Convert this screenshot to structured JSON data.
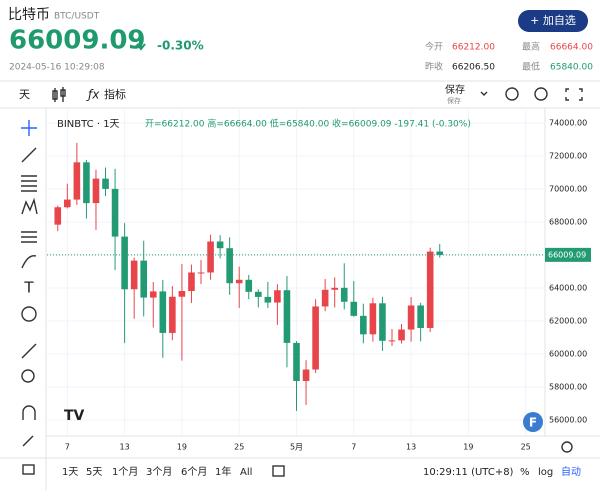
{
  "header": {
    "title": "比特币",
    "symbol": "BTC/USDT",
    "price": "66009.09",
    "change": "-0.30%",
    "time": "2024-05-16 10:29:08",
    "button": "+ 加自选",
    "stats": [
      {
        "label": "今开",
        "value": "66212.00"
      },
      {
        "label": "最高",
        "value": "66664.00"
      },
      {
        "label": "昨收",
        "value": "66206.50"
      },
      {
        "label": "最低",
        "value": "65840.00"
      }
    ]
  },
  "toolbar": {
    "interval": "天",
    "indicators": "指标",
    "save": "保存",
    "save_sub": "保存"
  },
  "chart_data": {
    "type": "candlestick",
    "legend_symbol": "BINBTC · 1天",
    "legend_ohlc": "开=66212.00 高=66664.00 低=65840.00 收=66009.09 -197.41 (-0.30%)",
    "categories": [
      null,
      "7",
      null,
      null,
      null,
      null,
      null,
      "13",
      null,
      null,
      null,
      null,
      null,
      "19",
      null,
      null,
      null,
      null,
      null,
      "25",
      null,
      null,
      null,
      null,
      null,
      "5月",
      null,
      null,
      null,
      null,
      null,
      "7",
      null,
      null,
      null,
      null,
      null,
      "13",
      null,
      null,
      null,
      null,
      null,
      "19",
      null,
      null,
      null,
      null,
      null,
      "25",
      null
    ],
    "open": [
      67840,
      68896,
      69360,
      71620,
      69146,
      70631,
      70006,
      67116,
      63924,
      65661,
      63419,
      63793,
      61277,
      63470,
      63818,
      64941,
      64941,
      66819,
      66414,
      64289,
      64498,
      63770,
      63461,
      63118,
      63866,
      60672,
      58364,
      59060,
      62882,
      63892,
      64012,
      63165,
      62312,
      61193,
      63074,
      60799,
      60825,
      61483,
      62940,
      61577,
      66212,
      null,
      null,
      null,
      null,
      null,
      null,
      null,
      null,
      null,
      null
    ],
    "high": [
      69000,
      70326,
      72797,
      71758,
      71172,
      71305,
      71227,
      67932,
      65840,
      66867,
      64365,
      64486,
      64125,
      65450,
      65419,
      65695,
      67233,
      67199,
      67075,
      65297,
      64789,
      63923,
      64370,
      64228,
      64734,
      60780,
      59625,
      63320,
      64544,
      64646,
      65500,
      64422,
      63052,
      63410,
      63469,
      61515,
      61818,
      63450,
      63102,
      66444,
      66664,
      null,
      null,
      null,
      null,
      null,
      null,
      null,
      null,
      null,
      null
    ],
    "low": [
      67450,
      68824,
      69040,
      68210,
      67518,
      69567,
      65086,
      60660,
      62134,
      62274,
      61600,
      59768,
      60833,
      59600,
      63090,
      64237,
      64500,
      65800,
      63589,
      62794,
      63323,
      62824,
      62781,
      61765,
      59191,
      56552,
      56911,
      58848,
      62592,
      62822,
      62700,
      62261,
      60648,
      60750,
      60187,
      60487,
      60632,
      60749,
      60760,
      61330,
      65840,
      null,
      null,
      null,
      null,
      null,
      null,
      null,
      null,
      null,
      null
    ],
    "close": [
      68896,
      69360,
      71620,
      69146,
      70631,
      70006,
      67116,
      63924,
      65661,
      63419,
      63793,
      61277,
      63470,
      63818,
      64941,
      64941,
      66819,
      66414,
      64289,
      64498,
      63770,
      63461,
      63118,
      63866,
      60672,
      58364,
      59060,
      62882,
      63892,
      64012,
      63165,
      62312,
      61193,
      63074,
      60799,
      60825,
      61483,
      62940,
      61577,
      66206,
      66009.09,
      null,
      null,
      null,
      null,
      null,
      null,
      null,
      null,
      null,
      null
    ],
    "up_color": "#e8454a",
    "down_color": "#229b74",
    "ylim": [
      55090,
      74790
    ],
    "yticks": [
      {
        "value": 56000,
        "label": "56000.00"
      },
      {
        "value": 58000,
        "label": "58000.00"
      },
      {
        "value": 60000,
        "label": "60000.00"
      },
      {
        "value": 62000,
        "label": "62000.00"
      },
      {
        "value": 64000,
        "label": "64000.00"
      },
      {
        "value": 66000,
        "label": "66000.00"
      },
      {
        "value": 68000,
        "label": "68000.00"
      },
      {
        "value": 70000,
        "label": "70000.00"
      },
      {
        "value": 72000,
        "label": "72000.00"
      },
      {
        "value": 74000,
        "label": "74000.00"
      }
    ],
    "last_price": 66009.09,
    "grid": true
  },
  "footer": {
    "ranges": [
      "1天",
      "5天",
      "1个月",
      "3个月",
      "6个月",
      "1年",
      "All"
    ],
    "clock": "10:29:11 (UTC+8)",
    "percent": "%",
    "log": "log",
    "auto": "自动"
  }
}
